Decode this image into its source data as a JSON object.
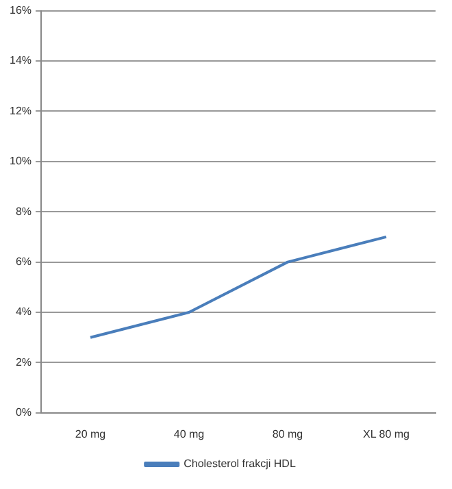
{
  "chart_data": {
    "type": "line",
    "categories": [
      "20 mg",
      "40 mg",
      "80 mg",
      "XL 80 mg"
    ],
    "series": [
      {
        "name": "Cholesterol frakcji HDL",
        "color": "#4a7ebb",
        "values": [
          3,
          4,
          6,
          7
        ]
      }
    ],
    "ylim": [
      0,
      16
    ],
    "yticks": [
      {
        "value": 0,
        "label": "0%"
      },
      {
        "value": 2,
        "label": "2%"
      },
      {
        "value": 4,
        "label": "4%"
      },
      {
        "value": 6,
        "label": "6%"
      },
      {
        "value": 8,
        "label": "8%"
      },
      {
        "value": 10,
        "label": "10%"
      },
      {
        "value": 12,
        "label": "12%"
      },
      {
        "value": 14,
        "label": "14%"
      },
      {
        "value": 16,
        "label": "16%"
      }
    ],
    "grid": "y",
    "legend": "bottom",
    "marker": "none",
    "line_style": "solid"
  }
}
